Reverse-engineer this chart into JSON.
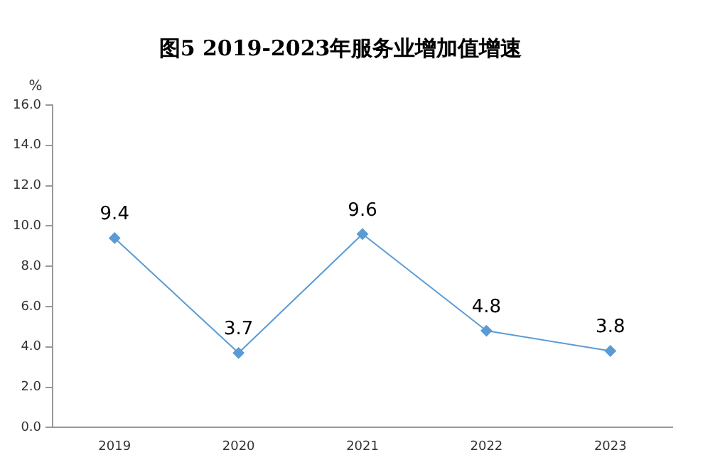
{
  "chart_data": {
    "type": "line",
    "title": "图5 2019-2023年服务业增加值增速",
    "ylabel": "%",
    "categories": [
      "2019",
      "2020",
      "2021",
      "2022",
      "2023"
    ],
    "values": [
      9.4,
      3.7,
      9.6,
      4.8,
      3.8
    ],
    "color": "#5b9bd5",
    "ylim": [
      0,
      16
    ],
    "yticks": [
      {
        "value": 0,
        "label": "0.0"
      },
      {
        "value": 2,
        "label": "2.0"
      },
      {
        "value": 4,
        "label": "4.0"
      },
      {
        "value": 6,
        "label": "6.0"
      },
      {
        "value": 8,
        "label": "8.0"
      },
      {
        "value": 10,
        "label": "10.0"
      },
      {
        "value": 12,
        "label": "12.0"
      },
      {
        "value": 14,
        "label": "14.0"
      },
      {
        "value": 16,
        "label": "16.0"
      }
    ],
    "marker": "diamond",
    "line_style": "solid",
    "data_labels": true,
    "grid": false,
    "legend": false
  }
}
